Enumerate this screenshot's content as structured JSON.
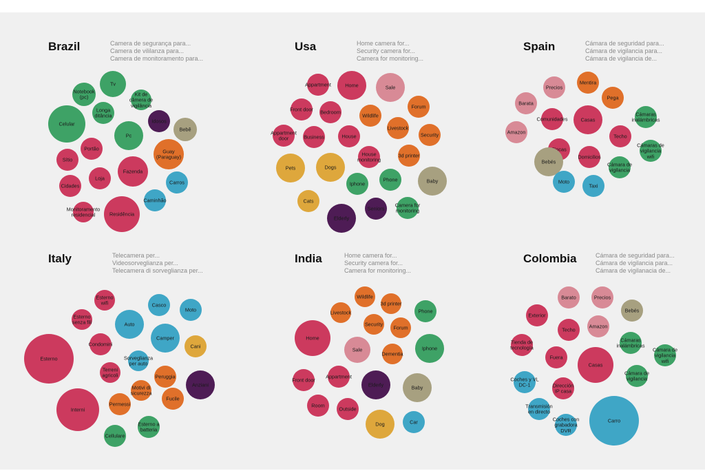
{
  "palette": {
    "green": "#3ea266",
    "pink": "#cc3a5e",
    "orange": "#e0702a",
    "purple": "#4e1c55",
    "blue": "#3fa6c6",
    "khaki": "#a7a080",
    "rose": "#d88a96",
    "yellow": "#dea73c"
  },
  "chart_data": [
    {
      "type": "bubble",
      "country": "Brazil",
      "queries": [
        "Camera de segurança para...",
        "Camera de vililanza para...",
        "Camera de monitoramento para..."
      ],
      "bubbles": [
        {
          "label": "Notebook (pc)",
          "size": 17,
          "color": "green"
        },
        {
          "label": "Tv",
          "size": 19,
          "color": "green"
        },
        {
          "label": "Kit de câmera de vigilância",
          "size": 15,
          "color": "green"
        },
        {
          "label": "Longa ditância",
          "size": 16,
          "color": "green"
        },
        {
          "label": "Celular",
          "size": 27,
          "color": "green"
        },
        {
          "label": "Idosos",
          "size": 16,
          "color": "purple"
        },
        {
          "label": "Bebê",
          "size": 17,
          "color": "khaki"
        },
        {
          "label": "Pc",
          "size": 21,
          "color": "green"
        },
        {
          "label": "Guay (Paraguay)",
          "size": 22,
          "color": "orange"
        },
        {
          "label": "Portão",
          "size": 16,
          "color": "pink"
        },
        {
          "label": "Sítio",
          "size": 16,
          "color": "pink"
        },
        {
          "label": "Fazenda",
          "size": 22,
          "color": "pink"
        },
        {
          "label": "Loja",
          "size": 16,
          "color": "pink"
        },
        {
          "label": "Cidades",
          "size": 16,
          "color": "pink"
        },
        {
          "label": "Carros",
          "size": 16,
          "color": "blue"
        },
        {
          "label": "Caminhão",
          "size": 16,
          "color": "blue"
        },
        {
          "label": "Monitoramento residencial",
          "size": 15,
          "color": "pink"
        },
        {
          "label": "Residência",
          "size": 26,
          "color": "pink"
        }
      ]
    },
    {
      "type": "bubble",
      "country": "Usa",
      "queries": [
        "Home camera for...",
        "Security camera for...",
        "Camera for monitoring..."
      ],
      "bubbles": [
        {
          "label": "Appartment",
          "size": 16,
          "color": "pink"
        },
        {
          "label": "Home",
          "size": 21,
          "color": "pink"
        },
        {
          "label": "Sale",
          "size": 21,
          "color": "rose"
        },
        {
          "label": "Front door",
          "size": 16,
          "color": "pink"
        },
        {
          "label": "Bedroom",
          "size": 16,
          "color": "pink"
        },
        {
          "label": "Forum",
          "size": 16,
          "color": "orange"
        },
        {
          "label": "Wildlife",
          "size": 16,
          "color": "orange"
        },
        {
          "label": "Appartment door",
          "size": 16,
          "color": "pink"
        },
        {
          "label": "Livestock",
          "size": 16,
          "color": "orange"
        },
        {
          "label": "Business",
          "size": 16,
          "color": "pink"
        },
        {
          "label": "House",
          "size": 16,
          "color": "pink"
        },
        {
          "label": "Security",
          "size": 16,
          "color": "orange"
        },
        {
          "label": "House monitoring",
          "size": 16,
          "color": "pink"
        },
        {
          "label": "3d printer",
          "size": 16,
          "color": "orange"
        },
        {
          "label": "Pets",
          "size": 21,
          "color": "yellow"
        },
        {
          "label": "Dogs",
          "size": 21,
          "color": "yellow"
        },
        {
          "label": "Phone",
          "size": 16,
          "color": "green"
        },
        {
          "label": "Baby",
          "size": 21,
          "color": "khaki"
        },
        {
          "label": "Iphone",
          "size": 16,
          "color": "green"
        },
        {
          "label": "Cats",
          "size": 16,
          "color": "yellow"
        },
        {
          "label": "Camera for monitoring",
          "size": 16,
          "color": "green"
        },
        {
          "label": "Seniors",
          "size": 16,
          "color": "purple"
        },
        {
          "label": "Elderly",
          "size": 21,
          "color": "purple"
        }
      ]
    },
    {
      "type": "bubble",
      "country": "Spain",
      "queries": [
        "Cámara de seguridad para...",
        "Cámara de vigilancia para...",
        "Cámara de vigilancia de..."
      ],
      "bubbles": [
        {
          "label": "Mentira",
          "size": 16,
          "color": "orange"
        },
        {
          "label": "Precios",
          "size": 16,
          "color": "rose"
        },
        {
          "label": "Pega",
          "size": 16,
          "color": "orange"
        },
        {
          "label": "Barata",
          "size": 16,
          "color": "rose"
        },
        {
          "label": "Comunidades",
          "size": 16,
          "color": "pink"
        },
        {
          "label": "Casas",
          "size": 21,
          "color": "pink"
        },
        {
          "label": "Cámaras inalámbricas",
          "size": 16,
          "color": "green"
        },
        {
          "label": "Amazon",
          "size": 16,
          "color": "rose"
        },
        {
          "label": "Techo",
          "size": 16,
          "color": "pink"
        },
        {
          "label": "Fincas",
          "size": 16,
          "color": "pink"
        },
        {
          "label": "Domicilios",
          "size": 16,
          "color": "pink"
        },
        {
          "label": "Cámaras de vigilancia wifi",
          "size": 16,
          "color": "green"
        },
        {
          "label": "Bebés",
          "size": 21,
          "color": "khaki"
        },
        {
          "label": "Cámara de vigilancia",
          "size": 16,
          "color": "green"
        },
        {
          "label": "Moto",
          "size": 16,
          "color": "blue"
        },
        {
          "label": "Taxi",
          "size": 16,
          "color": "blue"
        }
      ]
    },
    {
      "type": "bubble",
      "country": "Italy",
      "queries": [
        "Telecamera per...",
        "Videosorveglianza per...",
        "Telecamera di sorveglianza per..."
      ],
      "bubbles": [
        {
          "label": "Esterno wifi",
          "size": 15,
          "color": "pink"
        },
        {
          "label": "Casco",
          "size": 16,
          "color": "blue"
        },
        {
          "label": "Esterno senza fili",
          "size": 15,
          "color": "pink"
        },
        {
          "label": "Moto",
          "size": 16,
          "color": "blue"
        },
        {
          "label": "Auto",
          "size": 21,
          "color": "blue"
        },
        {
          "label": "Condomini",
          "size": 16,
          "color": "pink"
        },
        {
          "label": "Camper",
          "size": 21,
          "color": "blue"
        },
        {
          "label": "Cani",
          "size": 16,
          "color": "yellow"
        },
        {
          "label": "Esterno",
          "size": 36,
          "color": "pink"
        },
        {
          "label": "Sorveglianza per auto",
          "size": 15,
          "color": "blue"
        },
        {
          "label": "Terreni agricoli",
          "size": 15,
          "color": "pink"
        },
        {
          "label": "Peruggia",
          "size": 16,
          "color": "orange"
        },
        {
          "label": "Anziani",
          "size": 21,
          "color": "purple"
        },
        {
          "label": "Motivi di sicurezza",
          "size": 15,
          "color": "orange"
        },
        {
          "label": "Fucile",
          "size": 16,
          "color": "orange"
        },
        {
          "label": "Permessi",
          "size": 16,
          "color": "orange"
        },
        {
          "label": "Interni",
          "size": 31,
          "color": "pink"
        },
        {
          "label": "Esterno a batteria",
          "size": 16,
          "color": "green"
        },
        {
          "label": "Cellulare",
          "size": 16,
          "color": "green"
        }
      ]
    },
    {
      "type": "bubble",
      "country": "India",
      "queries": [
        "Home camera for...",
        "Security camera for...",
        "Camera for monitoring..."
      ],
      "bubbles": [
        {
          "label": "Wildlife",
          "size": 15,
          "color": "orange"
        },
        {
          "label": "3d printer",
          "size": 15,
          "color": "orange"
        },
        {
          "label": "Livestock",
          "size": 15,
          "color": "orange"
        },
        {
          "label": "Phone",
          "size": 16,
          "color": "green"
        },
        {
          "label": "Security",
          "size": 15,
          "color": "orange"
        },
        {
          "label": "Forum",
          "size": 15,
          "color": "orange"
        },
        {
          "label": "Home",
          "size": 26,
          "color": "pink"
        },
        {
          "label": "Sale",
          "size": 19,
          "color": "rose"
        },
        {
          "label": "Dementia",
          "size": 15,
          "color": "orange"
        },
        {
          "label": "Iphone",
          "size": 21,
          "color": "green"
        },
        {
          "label": "Front door",
          "size": 16,
          "color": "pink"
        },
        {
          "label": "Appartment",
          "size": 16,
          "color": "pink"
        },
        {
          "label": "Elderly",
          "size": 21,
          "color": "purple"
        },
        {
          "label": "Baby",
          "size": 21,
          "color": "khaki"
        },
        {
          "label": "Room",
          "size": 16,
          "color": "pink"
        },
        {
          "label": "Outside",
          "size": 16,
          "color": "pink"
        },
        {
          "label": "Dog",
          "size": 21,
          "color": "yellow"
        },
        {
          "label": "Car",
          "size": 16,
          "color": "blue"
        }
      ]
    },
    {
      "type": "bubble",
      "country": "Colombia",
      "queries": [
        "Cámara de seguridad para...",
        "Cámara de vigilancia para...",
        "Cámara de vigilanacia de..."
      ],
      "bubbles": [
        {
          "label": "Barato",
          "size": 16,
          "color": "rose"
        },
        {
          "label": "Precios",
          "size": 16,
          "color": "rose"
        },
        {
          "label": "Bebés",
          "size": 16,
          "color": "khaki"
        },
        {
          "label": "Exterior",
          "size": 16,
          "color": "pink"
        },
        {
          "label": "Techo",
          "size": 16,
          "color": "pink"
        },
        {
          "label": "Amazon",
          "size": 16,
          "color": "rose"
        },
        {
          "label": "Tienda de tecnología",
          "size": 16,
          "color": "pink"
        },
        {
          "label": "Cámaras inalámbricas",
          "size": 16,
          "color": "green"
        },
        {
          "label": "Cámara de vigilancia wifi",
          "size": 16,
          "color": "green"
        },
        {
          "label": "Fuera",
          "size": 16,
          "color": "pink"
        },
        {
          "label": "Casas",
          "size": 26,
          "color": "pink"
        },
        {
          "label": "Cámara de vigilancia",
          "size": 16,
          "color": "green"
        },
        {
          "label": "Coches y VL DC-1",
          "size": 16,
          "color": "blue"
        },
        {
          "label": "Dirección IP casa",
          "size": 16,
          "color": "pink"
        },
        {
          "label": "Transmisión en directo",
          "size": 16,
          "color": "blue"
        },
        {
          "label": "Carro",
          "size": 36,
          "color": "blue"
        },
        {
          "label": "Coches con grabadora DVR",
          "size": 16,
          "color": "blue"
        }
      ]
    }
  ]
}
